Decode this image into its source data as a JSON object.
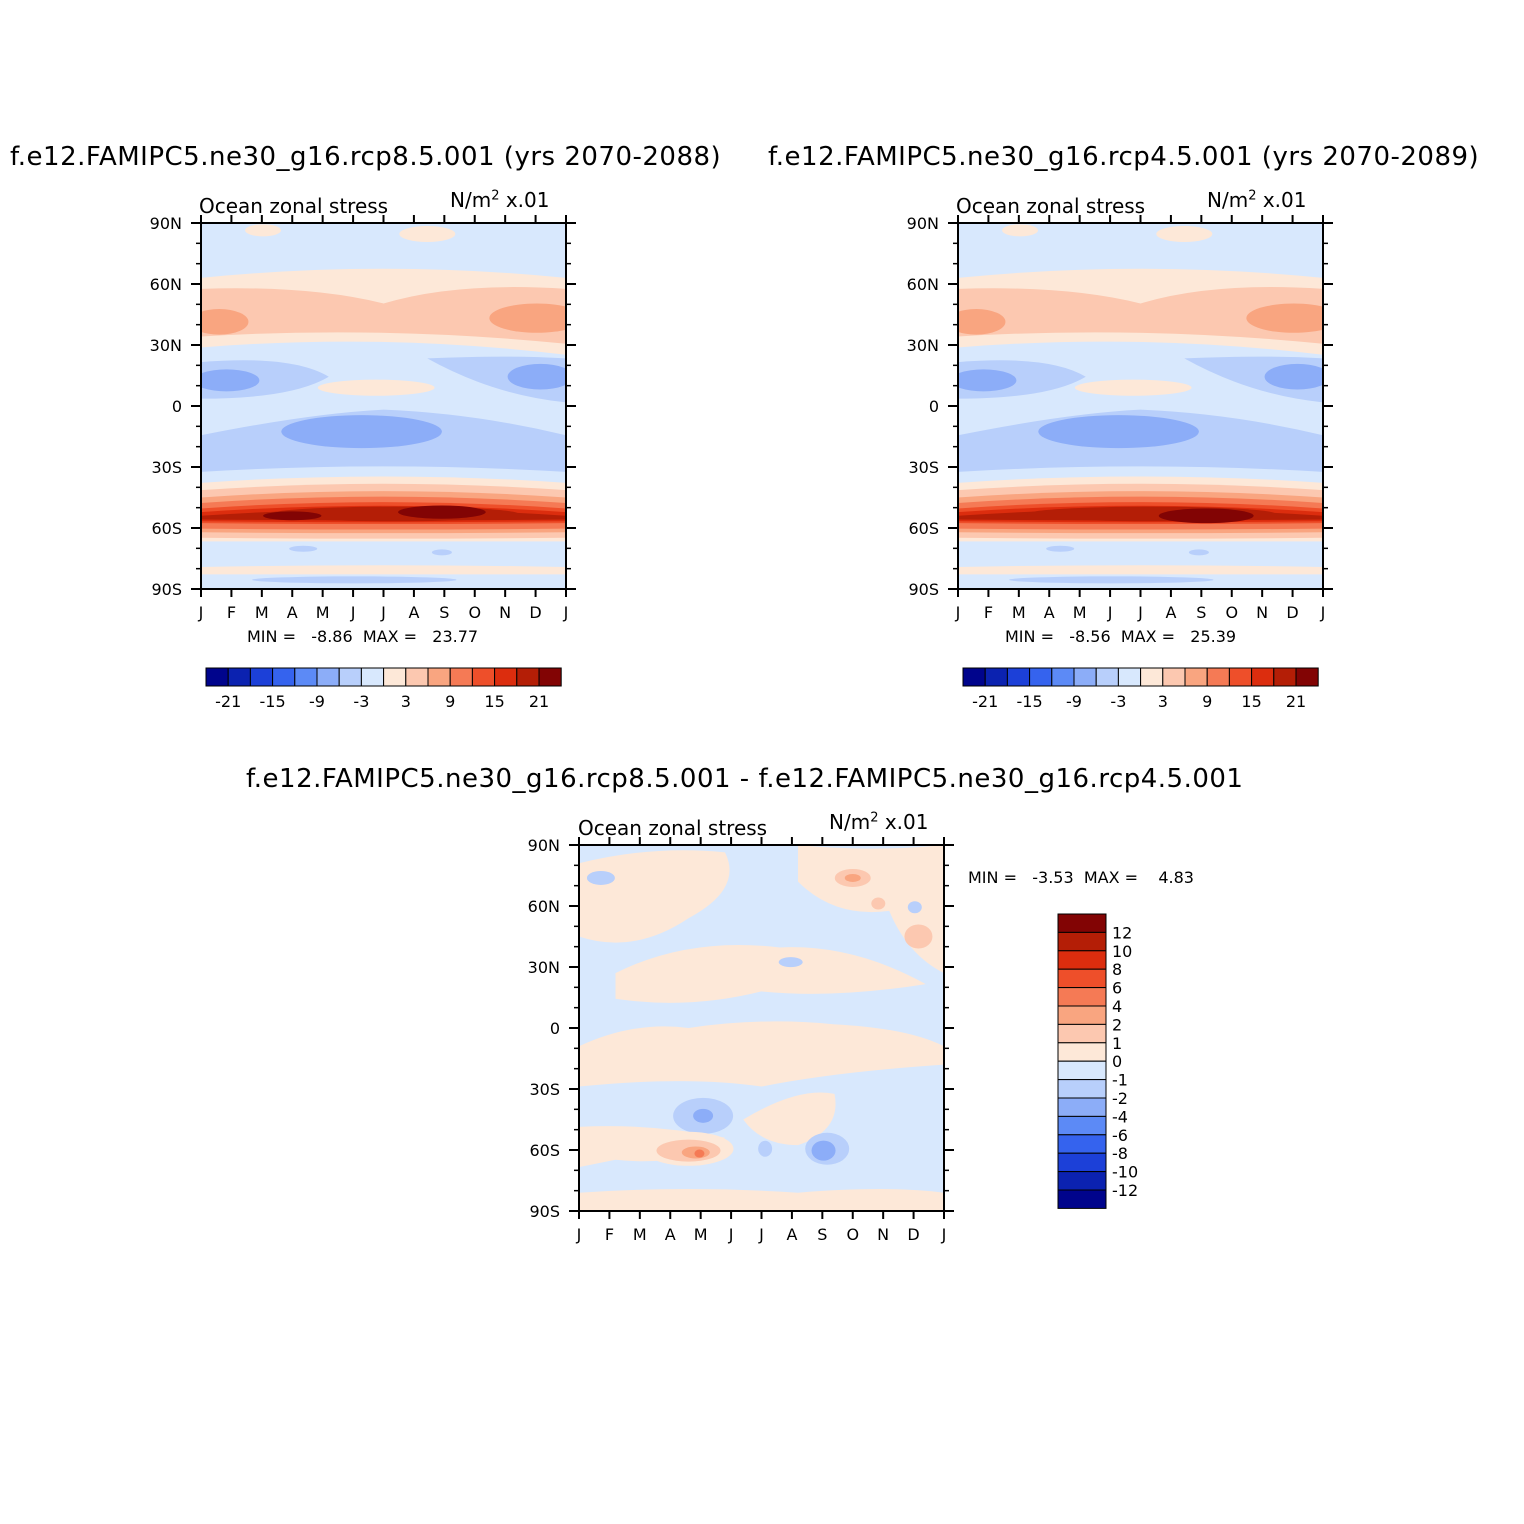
{
  "chart_data": [
    {
      "type": "heatmap",
      "title": "f.e12.FAMIPC5.ne30_g16.rcp8.5.001 (yrs 2070-2088)",
      "left_label": "Ocean zonal stress",
      "units_prefix": "N/m",
      "units_sup": "2",
      "units_suffix": " x.01",
      "x_ticks": [
        "J",
        "F",
        "M",
        "A",
        "M",
        "J",
        "J",
        "A",
        "S",
        "O",
        "N",
        "D",
        "J"
      ],
      "y_ticks": [
        "90N",
        "60N",
        "30N",
        "0",
        "30S",
        "60S",
        "90S"
      ],
      "stats": "MIN =   -8.86  MAX =   23.77",
      "min": -8.86,
      "max": 23.77,
      "legend": {
        "orientation": "horizontal",
        "labels": [
          "-21",
          "-15",
          "-9",
          "-3",
          "3",
          "9",
          "15",
          "21"
        ]
      }
    },
    {
      "type": "heatmap",
      "title": "f.e12.FAMIPC5.ne30_g16.rcp4.5.001 (yrs 2070-2089)",
      "left_label": "Ocean zonal stress",
      "units_prefix": "N/m",
      "units_sup": "2",
      "units_suffix": " x.01",
      "x_ticks": [
        "J",
        "F",
        "M",
        "A",
        "M",
        "J",
        "J",
        "A",
        "S",
        "O",
        "N",
        "D",
        "J"
      ],
      "y_ticks": [
        "90N",
        "60N",
        "30N",
        "0",
        "30S",
        "60S",
        "90S"
      ],
      "stats": "MIN =   -8.56  MAX =   25.39",
      "min": -8.56,
      "max": 25.39,
      "legend": {
        "orientation": "horizontal",
        "labels": [
          "-21",
          "-15",
          "-9",
          "-3",
          "3",
          "9",
          "15",
          "21"
        ]
      }
    },
    {
      "type": "heatmap",
      "title": "f.e12.FAMIPC5.ne30_g16.rcp8.5.001 - f.e12.FAMIPC5.ne30_g16.rcp4.5.001",
      "left_label": "Ocean zonal stress",
      "units_prefix": "N/m",
      "units_sup": "2",
      "units_suffix": " x.01",
      "x_ticks": [
        "J",
        "F",
        "M",
        "A",
        "M",
        "J",
        "J",
        "A",
        "S",
        "O",
        "N",
        "D",
        "J"
      ],
      "y_ticks": [
        "90N",
        "60N",
        "30N",
        "0",
        "30S",
        "60S",
        "90S"
      ],
      "stats": "MIN =   -3.53  MAX =    4.83",
      "min": -3.53,
      "max": 4.83,
      "legend": {
        "orientation": "vertical",
        "labels": [
          "12",
          "10",
          "8",
          "6",
          "4",
          "2",
          "1",
          "0",
          "-1",
          "-2",
          "-4",
          "-6",
          "-8",
          "-10",
          "-12"
        ]
      }
    }
  ],
  "palette": [
    "#00048c",
    "#0b22b0",
    "#1c40d8",
    "#3563ee",
    "#5c8af6",
    "#8cadf8",
    "#b8cffb",
    "#d8e8fd",
    "#fde8d8",
    "#fcc8b0",
    "#f9a580",
    "#f57a55",
    "#ee4f2a",
    "#dc2d0e",
    "#b41e06",
    "#820404"
  ],
  "diff_palette": [
    "#00048c",
    "#0b22b0",
    "#1c40d8",
    "#3563ee",
    "#5c8af6",
    "#8cadf8",
    "#b8cffb",
    "#d8e8fd",
    "#fde8d8",
    "#fcc8b0",
    "#f9a580",
    "#f57a55",
    "#ee4f2a",
    "#dc2d0e",
    "#b41e06",
    "#820404"
  ]
}
